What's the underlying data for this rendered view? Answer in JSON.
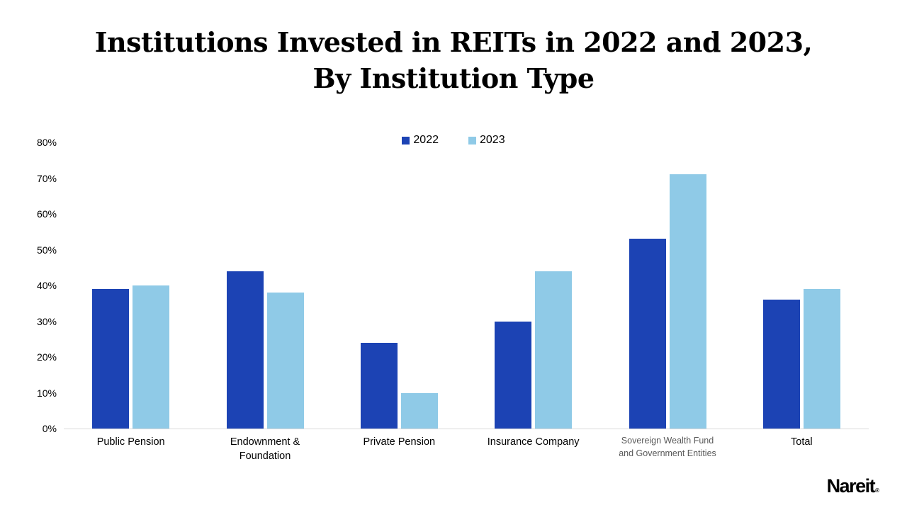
{
  "title": {
    "line1": "Institutions Invested in REITs in 2022 and 2023,",
    "line2": "By Institution Type"
  },
  "logo": {
    "text": "Nareit",
    "mark": "®"
  },
  "colors": {
    "series_2022": "#1C43B4",
    "series_2023": "#8FCAE7",
    "axis_line": "#D9D9D9",
    "muted_label": "#595959",
    "text": "#000000"
  },
  "chart_data": {
    "type": "bar",
    "title": "Institutions Invested in REITs in 2022 and 2023, By Institution Type",
    "categories": [
      "Public Pension",
      "Endownment & Foundation",
      "Private Pension",
      "Insurance Company",
      "Sovereign Wealth Fund and Government Entities",
      "Total"
    ],
    "category_label_lines": [
      [
        "Public Pension"
      ],
      [
        "Endownment &",
        "Foundation"
      ],
      [
        "Private Pension"
      ],
      [
        "Insurance Company"
      ],
      [
        "Sovereign Wealth Fund",
        "and Government Entities"
      ],
      [
        "Total"
      ]
    ],
    "muted_category_index": 4,
    "series": [
      {
        "name": "2022",
        "color": "#1C43B4",
        "values": [
          39,
          44,
          24,
          30,
          53,
          36
        ]
      },
      {
        "name": "2023",
        "color": "#8FCAE7",
        "values": [
          40,
          38,
          10,
          44,
          71,
          39
        ]
      }
    ],
    "xlabel": "",
    "ylabel": "",
    "yticks": [
      "0%",
      "10%",
      "20%",
      "30%",
      "40%",
      "50%",
      "60%",
      "70%",
      "80%"
    ],
    "ylim": [
      0,
      80
    ],
    "grid": false,
    "legend_position": "top-center"
  }
}
